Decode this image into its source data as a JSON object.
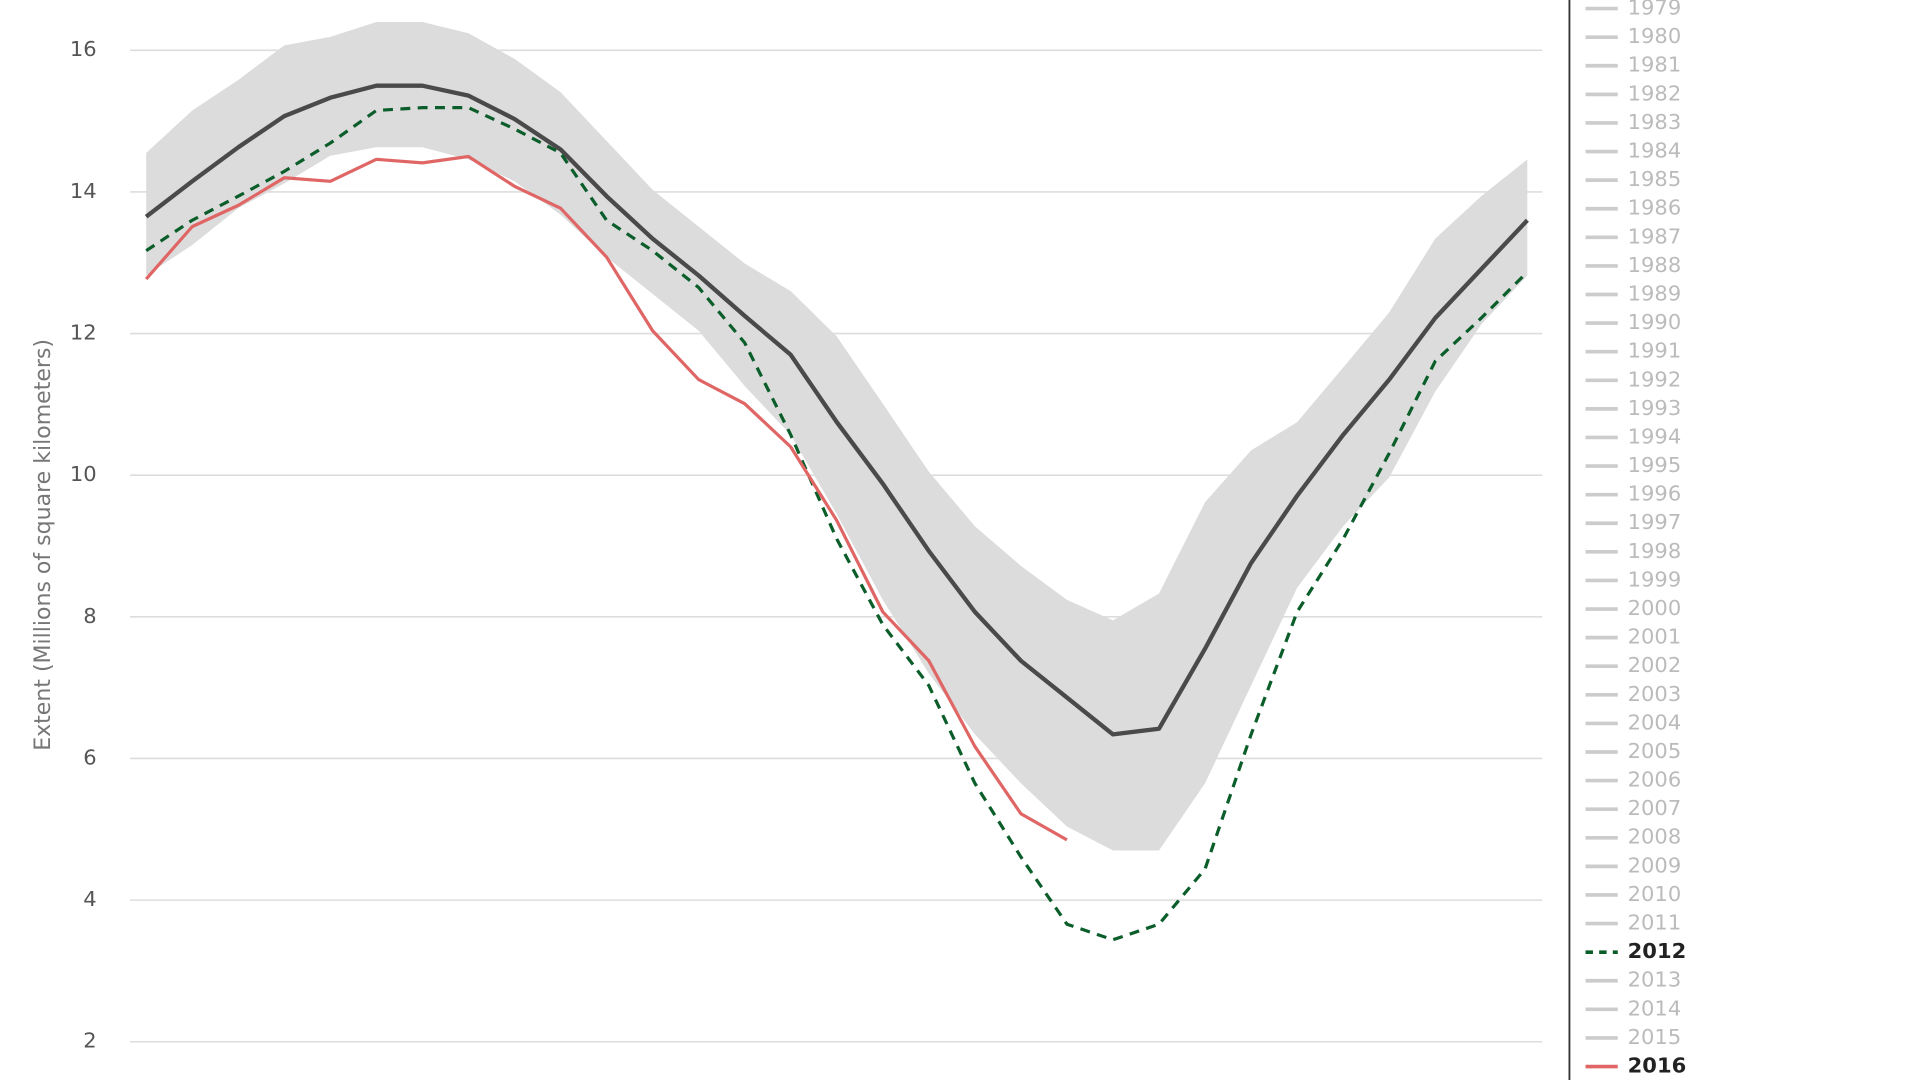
{
  "chart_data": {
    "type": "line",
    "y_label": "Extent (Millions of square kilometers)",
    "ylim": [
      1.46,
      16.71
    ],
    "yticks": [
      2,
      4,
      6,
      8,
      10,
      12,
      14,
      16
    ],
    "grid": true,
    "legend": "right",
    "median": {
      "color": "#4a4a4a",
      "values": [
        13.65,
        14.15,
        14.63,
        15.07,
        15.33,
        15.5,
        15.5,
        15.36,
        15.03,
        14.6,
        13.94,
        13.34,
        12.82,
        12.25,
        11.7,
        10.75,
        9.88,
        8.93,
        8.07,
        7.38,
        6.86,
        6.34,
        6.42,
        7.55,
        8.76,
        9.71,
        10.57,
        11.35,
        12.22,
        12.91,
        13.6
      ]
    },
    "band": {
      "color": "#dcdcdc",
      "upper": [
        14.55,
        15.15,
        15.58,
        16.07,
        16.19,
        16.4,
        16.4,
        16.24,
        15.88,
        15.41,
        14.72,
        14.03,
        13.51,
        12.99,
        12.6,
        11.96,
        11.01,
        10.05,
        9.28,
        8.72,
        8.24,
        7.95,
        8.33,
        9.62,
        10.35,
        10.75,
        11.52,
        12.3,
        13.34,
        13.94,
        14.46
      ],
      "lower": [
        12.82,
        13.25,
        13.77,
        14.12,
        14.51,
        14.63,
        14.63,
        14.46,
        14.15,
        13.68,
        13.08,
        12.56,
        12.04,
        11.26,
        10.57,
        9.45,
        8.24,
        7.2,
        6.34,
        5.65,
        5.04,
        4.7,
        4.7,
        5.65,
        7.03,
        8.41,
        9.28,
        9.97,
        11.18,
        12.13,
        12.82
      ]
    },
    "series": [
      {
        "name": "1979",
        "color": "#cccccc"
      },
      {
        "name": "1980",
        "color": "#cccccc"
      },
      {
        "name": "1981",
        "color": "#cccccc"
      },
      {
        "name": "1982",
        "color": "#cccccc"
      },
      {
        "name": "1983",
        "color": "#cccccc"
      },
      {
        "name": "1984",
        "color": "#cccccc"
      },
      {
        "name": "1985",
        "color": "#cccccc"
      },
      {
        "name": "1986",
        "color": "#cccccc"
      },
      {
        "name": "1987",
        "color": "#cccccc"
      },
      {
        "name": "1988",
        "color": "#cccccc"
      },
      {
        "name": "1989",
        "color": "#cccccc"
      },
      {
        "name": "1990",
        "color": "#cccccc"
      },
      {
        "name": "1991",
        "color": "#cccccc"
      },
      {
        "name": "1992",
        "color": "#cccccc"
      },
      {
        "name": "1993",
        "color": "#cccccc"
      },
      {
        "name": "1994",
        "color": "#cccccc"
      },
      {
        "name": "1995",
        "color": "#cccccc"
      },
      {
        "name": "1996",
        "color": "#cccccc"
      },
      {
        "name": "1997",
        "color": "#cccccc"
      },
      {
        "name": "1998",
        "color": "#cccccc"
      },
      {
        "name": "1999",
        "color": "#cccccc"
      },
      {
        "name": "2000",
        "color": "#cccccc"
      },
      {
        "name": "2001",
        "color": "#cccccc"
      },
      {
        "name": "2002",
        "color": "#cccccc"
      },
      {
        "name": "2003",
        "color": "#cccccc"
      },
      {
        "name": "2004",
        "color": "#cccccc"
      },
      {
        "name": "2005",
        "color": "#cccccc"
      },
      {
        "name": "2006",
        "color": "#cccccc"
      },
      {
        "name": "2007",
        "color": "#cccccc"
      },
      {
        "name": "2008",
        "color": "#cccccc"
      },
      {
        "name": "2009",
        "color": "#cccccc"
      },
      {
        "name": "2010",
        "color": "#cccccc"
      },
      {
        "name": "2011",
        "color": "#cccccc"
      },
      {
        "name": "2012",
        "color": "#0b5d2a",
        "dashed": true,
        "values": [
          13.17,
          13.6,
          13.94,
          14.29,
          14.69,
          15.15,
          15.19,
          15.19,
          14.89,
          14.55,
          13.6,
          13.17,
          12.65,
          11.87,
          10.57,
          9.1,
          7.89,
          7.03,
          5.65,
          4.61,
          3.66,
          3.44,
          3.66,
          4.44,
          6.34,
          8.07,
          9.1,
          10.31,
          11.61,
          12.22,
          12.87
        ]
      },
      {
        "name": "2013",
        "color": "#cccccc"
      },
      {
        "name": "2014",
        "color": "#cccccc"
      },
      {
        "name": "2015",
        "color": "#cccccc"
      },
      {
        "name": "2016",
        "color": "#e06666",
        "values": [
          12.77,
          13.51,
          13.81,
          14.2,
          14.15,
          14.46,
          14.41,
          14.5,
          14.08,
          13.77,
          13.08,
          12.04,
          11.35,
          11.01,
          10.4,
          9.36,
          8.07,
          7.38,
          6.17,
          5.22,
          4.85,
          null,
          null,
          null,
          null,
          null,
          null,
          null,
          null,
          null,
          null
        ]
      }
    ]
  }
}
